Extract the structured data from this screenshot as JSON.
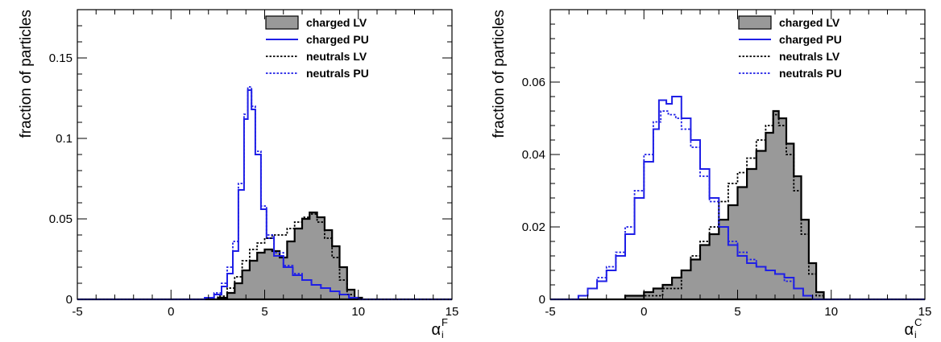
{
  "chart_data": [
    {
      "type": "line",
      "ylabel": "fraction of particles",
      "xlabel": "α",
      "xlabel_sub": "i",
      "xlabel_sup": "F",
      "xlim": [
        -5,
        15
      ],
      "ylim": [
        0,
        0.18
      ],
      "x_ticks": [
        -5,
        0,
        5,
        10,
        15
      ],
      "y_ticks": [
        0,
        0.05,
        0.1,
        0.15
      ],
      "y_tick_labels": [
        "0",
        "0.05",
        "0.1",
        "0.15"
      ],
      "legend_position": "top-right",
      "colors": {
        "lv": "#000000",
        "pu": "#1f1fe6",
        "fill": "#999999"
      },
      "series": [
        {
          "name": "charged LV",
          "style": "filled",
          "points": [
            [
              -5,
              0
            ],
            [
              1.5,
              0
            ],
            [
              2.5,
              0.001
            ],
            [
              3.0,
              0.004
            ],
            [
              3.4,
              0.01
            ],
            [
              3.8,
              0.018
            ],
            [
              4.2,
              0.024
            ],
            [
              4.6,
              0.029
            ],
            [
              5.0,
              0.031
            ],
            [
              5.4,
              0.03
            ],
            [
              5.8,
              0.026
            ],
            [
              6.2,
              0.036
            ],
            [
              6.6,
              0.044
            ],
            [
              7.0,
              0.05
            ],
            [
              7.4,
              0.054
            ],
            [
              7.8,
              0.051
            ],
            [
              8.2,
              0.043
            ],
            [
              8.6,
              0.033
            ],
            [
              9.0,
              0.02
            ],
            [
              9.4,
              0.006
            ],
            [
              9.8,
              0.001
            ],
            [
              10.2,
              0
            ],
            [
              15,
              0
            ]
          ]
        },
        {
          "name": "charged PU",
          "style": "solid",
          "points": [
            [
              -5,
              0
            ],
            [
              1.0,
              0
            ],
            [
              1.8,
              0.001
            ],
            [
              2.3,
              0.003
            ],
            [
              2.7,
              0.008
            ],
            [
              3.0,
              0.016
            ],
            [
              3.3,
              0.03
            ],
            [
              3.6,
              0.068
            ],
            [
              3.9,
              0.112
            ],
            [
              4.1,
              0.13
            ],
            [
              4.3,
              0.118
            ],
            [
              4.5,
              0.09
            ],
            [
              4.8,
              0.056
            ],
            [
              5.1,
              0.038
            ],
            [
              5.5,
              0.027
            ],
            [
              6.0,
              0.02
            ],
            [
              6.5,
              0.015
            ],
            [
              7.0,
              0.012
            ],
            [
              7.5,
              0.009
            ],
            [
              8.0,
              0.007
            ],
            [
              8.5,
              0.005
            ],
            [
              9.0,
              0.003
            ],
            [
              9.5,
              0.001
            ],
            [
              10.0,
              0
            ],
            [
              15,
              0
            ]
          ]
        },
        {
          "name": "neutrals LV",
          "style": "dotted",
          "points": [
            [
              -5,
              0
            ],
            [
              1.5,
              0
            ],
            [
              2.5,
              0.002
            ],
            [
              3.0,
              0.007
            ],
            [
              3.4,
              0.014
            ],
            [
              3.8,
              0.024
            ],
            [
              4.2,
              0.031
            ],
            [
              4.6,
              0.035
            ],
            [
              5.0,
              0.038
            ],
            [
              5.4,
              0.04
            ],
            [
              5.8,
              0.04
            ],
            [
              6.2,
              0.044
            ],
            [
              6.6,
              0.048
            ],
            [
              7.0,
              0.051
            ],
            [
              7.4,
              0.053
            ],
            [
              7.8,
              0.048
            ],
            [
              8.2,
              0.038
            ],
            [
              8.6,
              0.026
            ],
            [
              9.0,
              0.012
            ],
            [
              9.4,
              0.003
            ],
            [
              9.8,
              0
            ],
            [
              15,
              0
            ]
          ]
        },
        {
          "name": "neutrals PU",
          "style": "dotted",
          "points": [
            [
              -5,
              0
            ],
            [
              1.0,
              0
            ],
            [
              1.8,
              0.001
            ],
            [
              2.3,
              0.004
            ],
            [
              2.7,
              0.01
            ],
            [
              3.0,
              0.02
            ],
            [
              3.3,
              0.036
            ],
            [
              3.6,
              0.072
            ],
            [
              3.9,
              0.115
            ],
            [
              4.1,
              0.132
            ],
            [
              4.3,
              0.12
            ],
            [
              4.5,
              0.092
            ],
            [
              4.8,
              0.058
            ],
            [
              5.1,
              0.04
            ],
            [
              5.5,
              0.029
            ],
            [
              6.0,
              0.021
            ],
            [
              6.5,
              0.016
            ],
            [
              7.0,
              0.012
            ],
            [
              7.5,
              0.009
            ],
            [
              8.0,
              0.007
            ],
            [
              8.5,
              0.005
            ],
            [
              9.0,
              0.003
            ],
            [
              9.5,
              0.001
            ],
            [
              10.0,
              0
            ],
            [
              15,
              0
            ]
          ]
        }
      ]
    },
    {
      "type": "line",
      "ylabel": "fraction of particles",
      "xlabel": "α",
      "xlabel_sub": "i",
      "xlabel_sup": "C",
      "xlim": [
        -5,
        15
      ],
      "ylim": [
        0,
        0.08
      ],
      "x_ticks": [
        -5,
        0,
        5,
        10,
        15
      ],
      "y_ticks": [
        0,
        0.02,
        0.04,
        0.06
      ],
      "y_tick_labels": [
        "0",
        "0.02",
        "0.04",
        "0.06"
      ],
      "legend_position": "top-right",
      "colors": {
        "lv": "#000000",
        "pu": "#1f1fe6",
        "fill": "#999999"
      },
      "series": [
        {
          "name": "charged LV",
          "style": "filled",
          "points": [
            [
              -5,
              0
            ],
            [
              -2.0,
              0
            ],
            [
              -1.0,
              0.001
            ],
            [
              0,
              0.002
            ],
            [
              0.5,
              0.003
            ],
            [
              1.0,
              0.004
            ],
            [
              1.5,
              0.006
            ],
            [
              2.0,
              0.008
            ],
            [
              2.5,
              0.011
            ],
            [
              3.0,
              0.015
            ],
            [
              3.5,
              0.018
            ],
            [
              4.0,
              0.022
            ],
            [
              4.5,
              0.026
            ],
            [
              5.0,
              0.031
            ],
            [
              5.5,
              0.036
            ],
            [
              6.0,
              0.041
            ],
            [
              6.5,
              0.046
            ],
            [
              6.9,
              0.052
            ],
            [
              7.2,
              0.05
            ],
            [
              7.6,
              0.043
            ],
            [
              8.0,
              0.034
            ],
            [
              8.4,
              0.022
            ],
            [
              8.8,
              0.01
            ],
            [
              9.2,
              0.002
            ],
            [
              9.6,
              0
            ],
            [
              15,
              0
            ]
          ]
        },
        {
          "name": "charged PU",
          "style": "solid",
          "points": [
            [
              -5,
              0
            ],
            [
              -4.0,
              0
            ],
            [
              -3.5,
              0.001
            ],
            [
              -3.0,
              0.003
            ],
            [
              -2.5,
              0.005
            ],
            [
              -2.0,
              0.008
            ],
            [
              -1.5,
              0.012
            ],
            [
              -1.0,
              0.018
            ],
            [
              -0.5,
              0.028
            ],
            [
              0,
              0.038
            ],
            [
              0.5,
              0.047
            ],
            [
              0.8,
              0.055
            ],
            [
              1.2,
              0.054
            ],
            [
              1.5,
              0.056
            ],
            [
              2.0,
              0.05
            ],
            [
              2.5,
              0.044
            ],
            [
              3.0,
              0.036
            ],
            [
              3.5,
              0.028
            ],
            [
              4.0,
              0.02
            ],
            [
              4.5,
              0.015
            ],
            [
              5.0,
              0.012
            ],
            [
              5.5,
              0.01
            ],
            [
              6.0,
              0.009
            ],
            [
              6.5,
              0.008
            ],
            [
              7.0,
              0.007
            ],
            [
              7.5,
              0.006
            ],
            [
              8.0,
              0.003
            ],
            [
              8.5,
              0.001
            ],
            [
              9.0,
              0
            ],
            [
              15,
              0
            ]
          ]
        },
        {
          "name": "neutrals LV",
          "style": "dotted",
          "points": [
            [
              -5,
              0
            ],
            [
              -1.0,
              0
            ],
            [
              0,
              0.001
            ],
            [
              1.0,
              0.003
            ],
            [
              2.0,
              0.008
            ],
            [
              2.5,
              0.012
            ],
            [
              3.0,
              0.016
            ],
            [
              3.5,
              0.02
            ],
            [
              4.0,
              0.027
            ],
            [
              4.5,
              0.032
            ],
            [
              5.0,
              0.035
            ],
            [
              5.5,
              0.039
            ],
            [
              6.0,
              0.044
            ],
            [
              6.5,
              0.048
            ],
            [
              6.9,
              0.051
            ],
            [
              7.2,
              0.048
            ],
            [
              7.6,
              0.04
            ],
            [
              8.0,
              0.03
            ],
            [
              8.4,
              0.018
            ],
            [
              8.8,
              0.007
            ],
            [
              9.2,
              0.001
            ],
            [
              9.6,
              0
            ],
            [
              15,
              0
            ]
          ]
        },
        {
          "name": "neutrals PU",
          "style": "dotted",
          "points": [
            [
              -5,
              0
            ],
            [
              -4.0,
              0
            ],
            [
              -3.5,
              0.001
            ],
            [
              -3.0,
              0.003
            ],
            [
              -2.5,
              0.006
            ],
            [
              -2.0,
              0.009
            ],
            [
              -1.5,
              0.013
            ],
            [
              -1.0,
              0.02
            ],
            [
              -0.5,
              0.03
            ],
            [
              0,
              0.04
            ],
            [
              0.5,
              0.049
            ],
            [
              0.9,
              0.052
            ],
            [
              1.3,
              0.051
            ],
            [
              1.7,
              0.05
            ],
            [
              2.0,
              0.047
            ],
            [
              2.5,
              0.042
            ],
            [
              3.0,
              0.034
            ],
            [
              3.5,
              0.027
            ],
            [
              4.0,
              0.02
            ],
            [
              4.5,
              0.016
            ],
            [
              5.0,
              0.013
            ],
            [
              5.5,
              0.011
            ],
            [
              6.0,
              0.009
            ],
            [
              6.5,
              0.008
            ],
            [
              7.0,
              0.007
            ],
            [
              7.5,
              0.005
            ],
            [
              8.0,
              0.003
            ],
            [
              8.5,
              0.001
            ],
            [
              9.0,
              0
            ],
            [
              15,
              0
            ]
          ]
        }
      ]
    }
  ]
}
